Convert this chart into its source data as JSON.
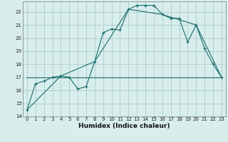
{
  "xlabel": "Humidex (Indice chaleur)",
  "bg_color": "#d8eeed",
  "grid_color": "#aacccc",
  "line_color": "#1a6b6b",
  "line1_x": [
    0,
    1,
    2,
    3,
    4,
    5,
    6,
    7,
    8,
    9,
    10,
    11,
    12,
    13,
    14,
    15,
    16,
    17,
    18,
    19,
    20,
    21,
    22,
    23
  ],
  "line1_y": [
    14.5,
    16.5,
    16.7,
    17.0,
    17.1,
    17.0,
    16.1,
    16.3,
    18.2,
    20.4,
    20.7,
    20.6,
    22.2,
    22.5,
    22.5,
    22.5,
    21.8,
    21.5,
    21.5,
    19.7,
    21.0,
    19.2,
    18.0,
    17.0
  ],
  "line2_x": [
    0,
    4,
    8,
    12,
    16,
    20,
    23
  ],
  "line2_y": [
    14.5,
    17.1,
    18.2,
    22.2,
    21.8,
    21.0,
    17.0
  ],
  "line3_x": [
    0,
    23
  ],
  "line3_y": [
    17.0,
    17.0
  ],
  "ylim": [
    14,
    22.8
  ],
  "xlim": [
    -0.5,
    23.5
  ],
  "yticks": [
    14,
    15,
    16,
    17,
    18,
    19,
    20,
    21,
    22
  ],
  "xticks": [
    0,
    1,
    2,
    3,
    4,
    5,
    6,
    7,
    8,
    9,
    10,
    11,
    12,
    13,
    14,
    15,
    16,
    17,
    18,
    19,
    20,
    21,
    22,
    23
  ]
}
